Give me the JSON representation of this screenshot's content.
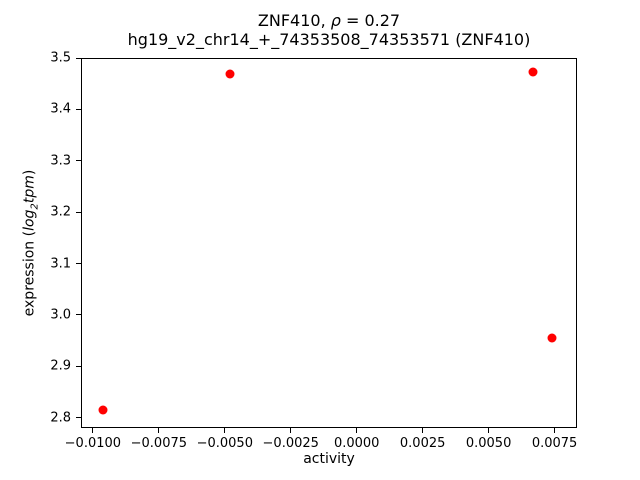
{
  "title": {
    "line1_prefix": "ZNF410, ",
    "line1_rho": "ρ",
    "line1_suffix": " = 0.27",
    "line2": "hg19_v2_chr14_+_74353508_74353571 (ZNF410)"
  },
  "axes": {
    "xlabel": "activity",
    "ylabel_prefix": "expression (",
    "ylabel_math_main": "log",
    "ylabel_math_sub": "2",
    "ylabel_math_tail": "tpm",
    "ylabel_suffix": ")"
  },
  "chart_data": {
    "type": "scatter",
    "title": "ZNF410, ρ = 0.27",
    "subtitle": "hg19_v2_chr14_+_74353508_74353571 (ZNF410)",
    "xlabel": "activity",
    "ylabel": "expression (log2tpm)",
    "rho": 0.27,
    "marker_color": "#ff0000",
    "marker_diameter_px": 9,
    "grid": false,
    "legend": null,
    "xlim": [
      -0.01045,
      0.00835
    ],
    "ylim": [
      2.78,
      3.5
    ],
    "xticks": [
      -0.01,
      -0.0075,
      -0.005,
      -0.0025,
      0.0,
      0.0025,
      0.005,
      0.0075
    ],
    "xtick_labels": [
      "−0.0100",
      "−0.0075",
      "−0.0050",
      "−0.0025",
      "0.0000",
      "0.0025",
      "0.0050",
      "0.0075"
    ],
    "yticks": [
      2.8,
      2.9,
      3.0,
      3.1,
      3.2,
      3.3,
      3.4,
      3.5
    ],
    "ytick_labels": [
      "2.8",
      "2.9",
      "3.0",
      "3.1",
      "3.2",
      "3.3",
      "3.4",
      "3.5"
    ],
    "points": [
      {
        "x": -0.0096,
        "y": 2.815
      },
      {
        "x": -0.0048,
        "y": 3.468
      },
      {
        "x": 0.0067,
        "y": 3.472
      },
      {
        "x": 0.0074,
        "y": 2.955
      }
    ]
  }
}
